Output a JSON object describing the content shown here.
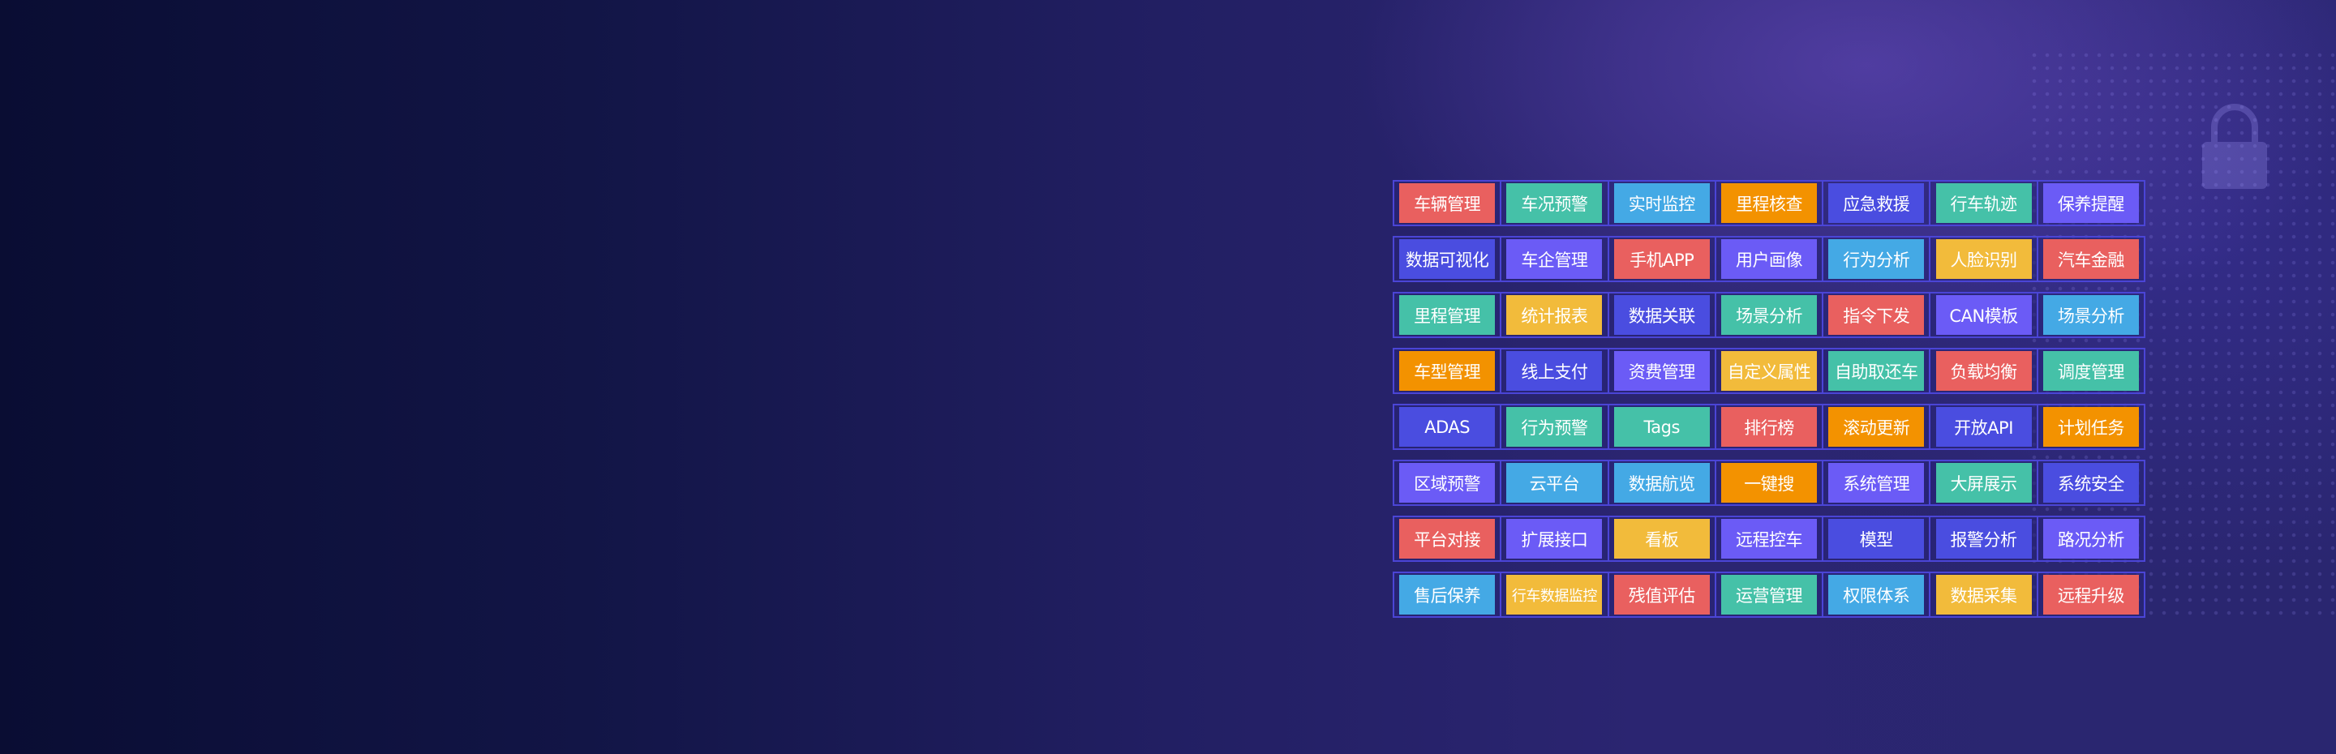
{
  "palette": {
    "red": "#e9605f",
    "teal": "#45c1a8",
    "sky": "#44a9e5",
    "orange": "#f39200",
    "indigo": "#4a4de0",
    "violet": "#6b5bf6",
    "yellow": "#f2bb3b"
  },
  "rows": [
    [
      {
        "label": "车辆管理",
        "color": "red"
      },
      {
        "label": "车况预警",
        "color": "teal"
      },
      {
        "label": "实时监控",
        "color": "sky"
      },
      {
        "label": "里程核查",
        "color": "orange"
      },
      {
        "label": "应急救援",
        "color": "indigo"
      },
      {
        "label": "行车轨迹",
        "color": "teal"
      },
      {
        "label": "保养提醒",
        "color": "violet"
      }
    ],
    [
      {
        "label": "数据可视化",
        "color": "indigo"
      },
      {
        "label": "车企管理",
        "color": "violet"
      },
      {
        "label": "手机APP",
        "color": "red"
      },
      {
        "label": "用户画像",
        "color": "violet"
      },
      {
        "label": "行为分析",
        "color": "sky"
      },
      {
        "label": "人脸识别",
        "color": "yellow"
      },
      {
        "label": "汽车金融",
        "color": "red"
      }
    ],
    [
      {
        "label": "里程管理",
        "color": "teal"
      },
      {
        "label": "统计报表",
        "color": "yellow"
      },
      {
        "label": "数据关联",
        "color": "indigo"
      },
      {
        "label": "场景分析",
        "color": "teal"
      },
      {
        "label": "指令下发",
        "color": "red"
      },
      {
        "label": "CAN模板",
        "color": "violet"
      },
      {
        "label": "场景分析",
        "color": "sky"
      }
    ],
    [
      {
        "label": "车型管理",
        "color": "orange"
      },
      {
        "label": "线上支付",
        "color": "indigo"
      },
      {
        "label": "资费管理",
        "color": "violet"
      },
      {
        "label": "自定义属性",
        "color": "yellow"
      },
      {
        "label": "自助取还车",
        "color": "teal"
      },
      {
        "label": "负载均衡",
        "color": "red"
      },
      {
        "label": "调度管理",
        "color": "teal"
      }
    ],
    [
      {
        "label": "ADAS",
        "color": "indigo"
      },
      {
        "label": "行为预警",
        "color": "teal"
      },
      {
        "label": "Tags",
        "color": "teal"
      },
      {
        "label": "排行榜",
        "color": "red"
      },
      {
        "label": "滚动更新",
        "color": "orange"
      },
      {
        "label": "开放API",
        "color": "indigo"
      },
      {
        "label": "计划任务",
        "color": "orange"
      }
    ],
    [
      {
        "label": "区域预警",
        "color": "violet"
      },
      {
        "label": "云平台",
        "color": "sky"
      },
      {
        "label": "数据航览",
        "color": "sky"
      },
      {
        "label": "一键搜",
        "color": "orange"
      },
      {
        "label": "系统管理",
        "color": "violet"
      },
      {
        "label": "大屏展示",
        "color": "teal"
      },
      {
        "label": "系统安全",
        "color": "indigo"
      }
    ],
    [
      {
        "label": "平台对接",
        "color": "red"
      },
      {
        "label": "扩展接口",
        "color": "violet"
      },
      {
        "label": "看板",
        "color": "yellow"
      },
      {
        "label": "远程控车",
        "color": "violet"
      },
      {
        "label": "模型",
        "color": "indigo"
      },
      {
        "label": "报警分析",
        "color": "indigo"
      },
      {
        "label": "路况分析",
        "color": "violet"
      }
    ],
    [
      {
        "label": "售后保养",
        "color": "sky"
      },
      {
        "label": "行车数据监控",
        "color": "yellow"
      },
      {
        "label": "残值评估",
        "color": "red"
      },
      {
        "label": "运营管理",
        "color": "teal"
      },
      {
        "label": "权限体系",
        "color": "sky"
      },
      {
        "label": "数据采集",
        "color": "yellow"
      },
      {
        "label": "远程升级",
        "color": "red"
      }
    ]
  ]
}
